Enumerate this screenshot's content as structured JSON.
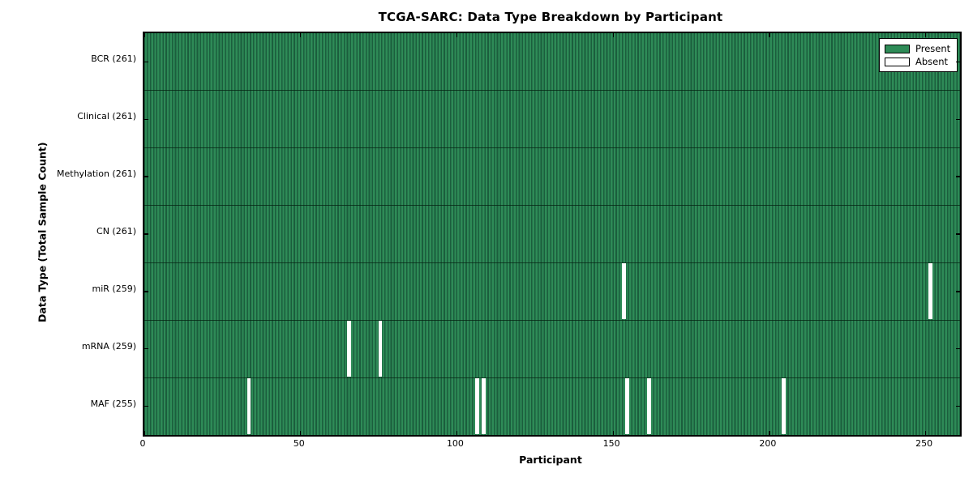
{
  "title": "TCGA-SARC: Data Type Breakdown by Participant",
  "xlabel": "Participant",
  "ylabel": "Data Type (Total Sample Count)",
  "legend": {
    "present_label": "Present",
    "absent_label": "Absent"
  },
  "colors": {
    "present_fill": "#2e8b57",
    "present_edge": "#1b5e3d",
    "absent_fill": "#ffffff",
    "axis": "#000000",
    "background": "#ffffff"
  },
  "chart_data": {
    "type": "heatmap",
    "title": "TCGA-SARC: Data Type Breakdown by Participant",
    "xlabel": "Participant",
    "ylabel": "Data Type (Total Sample Count)",
    "xlim": [
      0,
      261
    ],
    "n_participants": 261,
    "x_ticks": [
      0,
      50,
      100,
      150,
      200,
      250
    ],
    "grid": false,
    "legend_position": "upper right",
    "legend_entries": [
      "Present",
      "Absent"
    ],
    "rows": [
      {
        "name": "BCR",
        "label": "BCR (261)",
        "present_count": 261,
        "absent_participants": []
      },
      {
        "name": "Clinical",
        "label": "Clinical (261)",
        "present_count": 261,
        "absent_participants": []
      },
      {
        "name": "Methylation",
        "label": "Methylation (261)",
        "present_count": 261,
        "absent_participants": []
      },
      {
        "name": "CN",
        "label": "CN (261)",
        "present_count": 261,
        "absent_participants": []
      },
      {
        "name": "miR",
        "label": "miR (259)",
        "present_count": 259,
        "absent_participants": [
          153,
          251
        ]
      },
      {
        "name": "mRNA",
        "label": "mRNA (259)",
        "present_count": 259,
        "absent_participants": [
          65,
          75
        ]
      },
      {
        "name": "MAF",
        "label": "MAF (255)",
        "present_count": 255,
        "absent_participants": [
          33,
          106,
          108,
          154,
          161,
          204
        ]
      }
    ]
  }
}
